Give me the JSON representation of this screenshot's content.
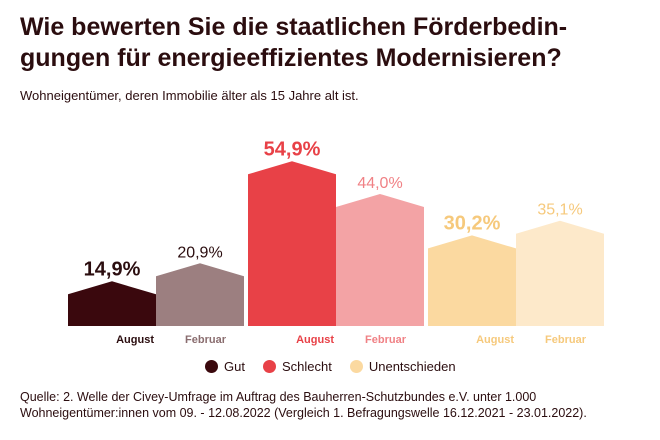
{
  "header": {
    "title": "Wie bewerten Sie die staatlichen Förderbedin-gungen für energieeffizientes Modernisieren?",
    "title_line1": "Wie bewerten Sie die staatlichen Förderbedin-",
    "title_line2": "gungen für energieeffizientes Modernisieren?",
    "subtitle": "Wohneigentümer, deren Immobilie älter als 15 Jahre alt ist."
  },
  "chart_data": {
    "type": "bar",
    "title": "Wie bewerten Sie die staatlichen Förderbedingungen für energieeffizientes Modernisieren?",
    "categories": [
      "Gut",
      "Schlecht",
      "Unentschieden"
    ],
    "waves": [
      "August",
      "Februar"
    ],
    "series": [
      {
        "name": "August",
        "values": [
          14.9,
          54.9,
          30.2
        ]
      },
      {
        "name": "Februar",
        "values": [
          20.9,
          44.0,
          35.1
        ]
      }
    ],
    "value_labels": [
      [
        "14,9%",
        "20,9%"
      ],
      [
        "54,9%",
        "44,0%"
      ],
      [
        "30,2%",
        "35,1%"
      ]
    ],
    "colors": [
      [
        "#3a080d",
        "#9c7f80"
      ],
      [
        "#e84147",
        "#f3a3a5"
      ],
      [
        "#fbd9a0",
        "#fde9ca"
      ]
    ],
    "label_colors": [
      [
        "#2b0d0f",
        "#2b0d0f"
      ],
      [
        "#e84147",
        "#f08185"
      ],
      [
        "#f6c97c",
        "#f6c97c"
      ]
    ],
    "tick_label_colors": [
      [
        "#2b0d0f",
        "#8a6d6f"
      ],
      [
        "#e84147",
        "#f08185"
      ],
      [
        "#f6c97c",
        "#f6c97c"
      ]
    ],
    "ylim": [
      0,
      60
    ],
    "xlabel": "",
    "ylabel": "",
    "grid": false,
    "legend": "bottom"
  },
  "legend": {
    "items": [
      {
        "label": "Gut",
        "color": "#3a080d"
      },
      {
        "label": "Schlecht",
        "color": "#e84147"
      },
      {
        "label": "Unentschieden",
        "color": "#fbd9a0"
      }
    ]
  },
  "footer": {
    "source_line1": "Quelle: 2. Welle der Civey-Umfrage im Auftrag des Bauherren-Schutzbundes e.V. unter 1.000",
    "source_line2": "Wohneigentümer:innen vom 09. - 12.08.2022 (Vergleich 1. Befragungswelle 16.12.2021 - 23.01.2022)."
  }
}
